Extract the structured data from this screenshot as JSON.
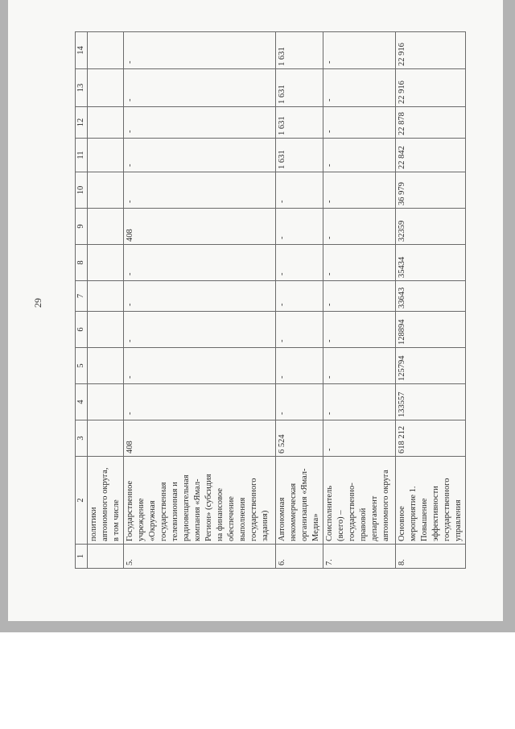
{
  "page_number": "29",
  "table": {
    "header": [
      "1",
      "2",
      "3",
      "4",
      "5",
      "6",
      "7",
      "8",
      "9",
      "10",
      "11",
      "12",
      "13",
      "14"
    ],
    "rows": [
      {
        "cells": [
          "",
          "политики\nавтономного округа,\nв том числе",
          "",
          "",
          "",
          "",
          "",
          "",
          "",
          "",
          "",
          "",
          "",
          ""
        ]
      },
      {
        "cells": [
          "5.",
          "Государственное\nучреждение\n«Окружная\nгосударственная\nтелевизионная и\nрадиовещательная\nкомпания «Ямал-\nРегион» (субсидия\nна финансовое\nобеспечение\nвыполнения\nгосударственного\nзадания)",
          "408",
          "-",
          "-",
          "-",
          "-",
          "-",
          "408",
          "-",
          "-",
          "-",
          "-",
          "-"
        ]
      },
      {
        "cells": [
          "6.",
          "Автономная\nнекоммерческая\nорганизация «Ямал-\nМедиа»",
          "6 524",
          "-",
          "-",
          "-",
          "-",
          "-",
          "-",
          "-",
          "1 631",
          "1 631",
          "1 631",
          "1 631"
        ]
      },
      {
        "cells": [
          "7.",
          "Соисполнитель\n(всего) –\nгосударственно-\nправовой\nдепартамент\nавтономного округа",
          "-",
          "-",
          "-",
          "-",
          "-",
          "-",
          "-",
          "-",
          "-",
          "-",
          "-",
          "-"
        ]
      },
      {
        "cells": [
          "8.",
          "Основное\nмероприятие 1.\nПовышение\nэффективности\nгосударственного\nуправления",
          "618 212",
          "133557",
          "125794",
          "128894",
          "33643",
          "35434",
          "32359",
          "36 979",
          "22 842",
          "22 878",
          "22 916",
          "22 916"
        ]
      }
    ]
  }
}
